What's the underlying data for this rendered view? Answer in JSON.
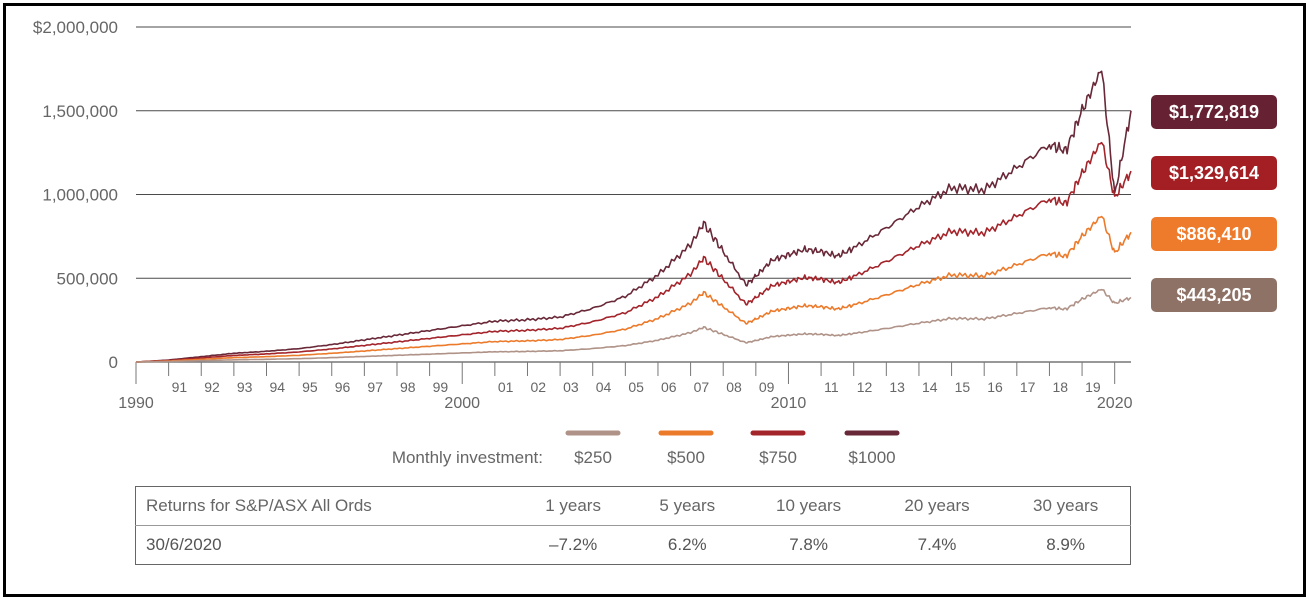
{
  "colors": {
    "s250": "#b09388",
    "s500": "#ec7a2b",
    "s750": "#a3242a",
    "s1000": "#682838",
    "grid": "#4a4a4a",
    "axis": "#777777"
  },
  "legend": {
    "label": "Monthly investment:",
    "items": [
      {
        "label": "$250",
        "color": "#b09388"
      },
      {
        "label": "$500",
        "color": "#ec7a2b"
      },
      {
        "label": "$750",
        "color": "#a3242a"
      },
      {
        "label": "$1000",
        "color": "#682838"
      }
    ]
  },
  "end_labels": [
    {
      "text": "$1,772,819",
      "color": "#662233"
    },
    {
      "text": "$1,329,614",
      "color": "#a31f24"
    },
    {
      "text": "$886,410",
      "color": "#ee7a2b"
    },
    {
      "text": "$443,205",
      "color": "#8f7266"
    }
  ],
  "returns_table": {
    "header": [
      "Returns for S&P/ASX All Ords",
      "1 years",
      "5 years",
      "10 years",
      "20 years",
      "30 years"
    ],
    "row": [
      "30/6/2020",
      "–7.2%",
      "6.2%",
      "7.8%",
      "7.4%",
      "8.9%"
    ]
  },
  "chart_data": {
    "type": "line",
    "title": "",
    "xlabel": "",
    "ylabel": "",
    "xlim": [
      1990,
      2020.5
    ],
    "ylim": [
      0,
      2000000
    ],
    "y_ticks": [
      {
        "value": 0,
        "label": "0"
      },
      {
        "value": 500000,
        "label": "500,000"
      },
      {
        "value": 1000000,
        "label": "1,000,000"
      },
      {
        "value": 1500000,
        "label": "1,500,000"
      },
      {
        "value": 2000000,
        "label": "$2,000,000"
      }
    ],
    "x_ticks": [
      {
        "value": 1990,
        "label": "1990",
        "major": true
      },
      {
        "value": 1991,
        "label": "91"
      },
      {
        "value": 1992,
        "label": "92"
      },
      {
        "value": 1993,
        "label": "93"
      },
      {
        "value": 1994,
        "label": "94"
      },
      {
        "value": 1995,
        "label": "95"
      },
      {
        "value": 1996,
        "label": "96"
      },
      {
        "value": 1997,
        "label": "97"
      },
      {
        "value": 1998,
        "label": "98"
      },
      {
        "value": 1999,
        "label": "99"
      },
      {
        "value": 2000,
        "label": "2000",
        "major": true
      },
      {
        "value": 2001,
        "label": "01"
      },
      {
        "value": 2002,
        "label": "02"
      },
      {
        "value": 2003,
        "label": "03"
      },
      {
        "value": 2004,
        "label": "04"
      },
      {
        "value": 2005,
        "label": "05"
      },
      {
        "value": 2006,
        "label": "06"
      },
      {
        "value": 2007,
        "label": "07"
      },
      {
        "value": 2008,
        "label": "08"
      },
      {
        "value": 2009,
        "label": "09"
      },
      {
        "value": 2010,
        "label": "2010",
        "major": true
      },
      {
        "value": 2011,
        "label": "11"
      },
      {
        "value": 2012,
        "label": "12"
      },
      {
        "value": 2013,
        "label": "13"
      },
      {
        "value": 2014,
        "label": "14"
      },
      {
        "value": 2015,
        "label": "15"
      },
      {
        "value": 2016,
        "label": "16"
      },
      {
        "value": 2017,
        "label": "17"
      },
      {
        "value": 2018,
        "label": "18"
      },
      {
        "value": 2019,
        "label": "19"
      },
      {
        "value": 2020,
        "label": "2020",
        "major": true
      }
    ],
    "x": [
      1990,
      1991,
      1992,
      1993,
      1994,
      1995,
      1996,
      1997,
      1998,
      1999,
      2000,
      2001,
      2002,
      2003,
      2004,
      2005,
      2006,
      2007,
      2007.4,
      2008,
      2008.7,
      2009,
      2009.5,
      2010,
      2010.5,
      2011,
      2011.5,
      2012,
      2013,
      2014,
      2015,
      2016,
      2017,
      2018,
      2018.5,
      2019,
      2019.6,
      2020,
      2020.5
    ],
    "series": [
      {
        "name": "$250",
        "values": [
          0,
          3000,
          8000,
          13000,
          16000,
          20000,
          26000,
          33000,
          40000,
          47000,
          54000,
          61000,
          63000,
          67000,
          80000,
          98000,
          130000,
          175000,
          207000,
          165000,
          115000,
          128000,
          152000,
          160000,
          168000,
          165000,
          158000,
          170000,
          200000,
          232000,
          260000,
          257000,
          290000,
          325000,
          315000,
          375000,
          435000,
          350000,
          385000
        ]
      },
      {
        "name": "$500",
        "values": [
          0,
          6000,
          16000,
          26000,
          32000,
          40000,
          52000,
          66000,
          80000,
          94000,
          108000,
          122000,
          126000,
          134000,
          160000,
          196000,
          260000,
          350000,
          414000,
          330000,
          230000,
          256000,
          304000,
          320000,
          336000,
          330000,
          316000,
          340000,
          400000,
          464000,
          520000,
          514000,
          580000,
          650000,
          630000,
          750000,
          875000,
          650000,
          775000
        ]
      },
      {
        "name": "$750",
        "values": [
          0,
          9000,
          24000,
          39000,
          48000,
          60000,
          78000,
          99000,
          120000,
          141000,
          162000,
          183000,
          189000,
          201000,
          240000,
          294000,
          390000,
          525000,
          621000,
          495000,
          345000,
          384000,
          456000,
          480000,
          504000,
          495000,
          474000,
          510000,
          600000,
          696000,
          780000,
          771000,
          870000,
          975000,
          945000,
          1125000,
          1320000,
          980000,
          1140000
        ]
      },
      {
        "name": "$1000",
        "values": [
          0,
          12000,
          32000,
          52000,
          64000,
          80000,
          104000,
          132000,
          160000,
          188000,
          216000,
          244000,
          252000,
          268000,
          320000,
          392000,
          520000,
          700000,
          828000,
          660000,
          460000,
          512000,
          608000,
          640000,
          672000,
          660000,
          632000,
          680000,
          800000,
          928000,
          1040000,
          1028000,
          1160000,
          1300000,
          1260000,
          1500000,
          1750000,
          1000000,
          1500000
        ]
      }
    ]
  }
}
